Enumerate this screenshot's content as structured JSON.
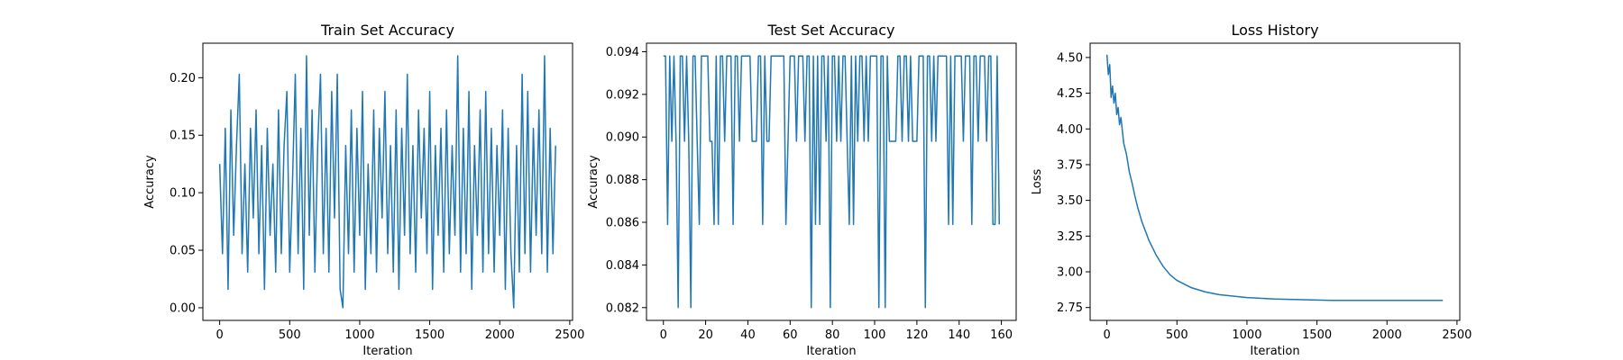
{
  "chart_data": [
    {
      "type": "line",
      "title": "Train Set Accuracy",
      "x_label": "Iteration",
      "y_label": "Accuracy",
      "color": "#1f77b4",
      "x": [
        0,
        20,
        40,
        60,
        80,
        100,
        120,
        140,
        160,
        180,
        200,
        220,
        240,
        260,
        280,
        300,
        320,
        340,
        360,
        380,
        400,
        420,
        440,
        460,
        480,
        500,
        520,
        540,
        560,
        580,
        600,
        620,
        640,
        660,
        680,
        700,
        720,
        740,
        760,
        780,
        800,
        820,
        840,
        860,
        880,
        900,
        920,
        940,
        960,
        980,
        1000,
        1020,
        1040,
        1060,
        1080,
        1100,
        1120,
        1140,
        1160,
        1180,
        1200,
        1220,
        1240,
        1260,
        1280,
        1300,
        1320,
        1340,
        1360,
        1380,
        1400,
        1420,
        1440,
        1460,
        1480,
        1500,
        1520,
        1540,
        1560,
        1580,
        1600,
        1620,
        1640,
        1660,
        1680,
        1700,
        1720,
        1740,
        1760,
        1780,
        1800,
        1820,
        1840,
        1860,
        1880,
        1900,
        1920,
        1940,
        1960,
        1980,
        2000,
        2020,
        2040,
        2060,
        2080,
        2100,
        2120,
        2140,
        2160,
        2180,
        2200,
        2220,
        2240,
        2260,
        2280,
        2300,
        2320,
        2340,
        2360,
        2380,
        2399
      ],
      "values": [
        0.125,
        0.047,
        0.156,
        0.016,
        0.172,
        0.063,
        0.141,
        0.203,
        0.047,
        0.125,
        0.031,
        0.156,
        0.078,
        0.172,
        0.047,
        0.141,
        0.016,
        0.156,
        0.063,
        0.125,
        0.031,
        0.172,
        0.047,
        0.141,
        0.188,
        0.031,
        0.109,
        0.203,
        0.047,
        0.156,
        0.016,
        0.219,
        0.063,
        0.172,
        0.031,
        0.141,
        0.203,
        0.047,
        0.156,
        0.031,
        0.188,
        0.078,
        0.203,
        0.016,
        0.0,
        0.141,
        0.047,
        0.172,
        0.031,
        0.156,
        0.063,
        0.188,
        0.016,
        0.125,
        0.047,
        0.172,
        0.031,
        0.156,
        0.078,
        0.188,
        0.047,
        0.141,
        0.031,
        0.172,
        0.016,
        0.156,
        0.063,
        0.203,
        0.047,
        0.141,
        0.031,
        0.172,
        0.078,
        0.156,
        0.047,
        0.188,
        0.016,
        0.141,
        0.063,
        0.156,
        0.031,
        0.172,
        0.047,
        0.141,
        0.063,
        0.219,
        0.031,
        0.156,
        0.047,
        0.188,
        0.016,
        0.141,
        0.063,
        0.172,
        0.031,
        0.188,
        0.047,
        0.156,
        0.031,
        0.141,
        0.063,
        0.172,
        0.016,
        0.156,
        0.047,
        0.0,
        0.141,
        0.031,
        0.203,
        0.047,
        0.188,
        0.031,
        0.156,
        0.063,
        0.172,
        0.047,
        0.219,
        0.031,
        0.156,
        0.047,
        0.141
      ],
      "xlim": [
        -120,
        2520
      ],
      "ylim": [
        -0.011,
        0.23
      ],
      "xticks": [
        0,
        500,
        1000,
        1500,
        2000,
        2500
      ],
      "yticks": [
        {
          "value": 0,
          "label": "0.00"
        },
        0.05,
        {
          "value": 0.1,
          "label": "0.10"
        },
        0.15,
        {
          "value": 0.2,
          "label": "0.20"
        }
      ]
    },
    {
      "type": "line",
      "title": "Test Set Accuracy",
      "x_label": "Iteration",
      "y_label": "Accuracy",
      "color": "#1f77b4",
      "x": [
        0,
        1,
        2,
        3,
        4,
        5,
        6,
        7,
        8,
        9,
        10,
        11,
        12,
        13,
        14,
        15,
        16,
        17,
        18,
        19,
        20,
        21,
        22,
        23,
        24,
        25,
        26,
        27,
        28,
        29,
        30,
        31,
        32,
        33,
        34,
        35,
        36,
        37,
        38,
        39,
        40,
        41,
        42,
        43,
        44,
        45,
        46,
        47,
        48,
        49,
        50,
        51,
        52,
        53,
        54,
        55,
        56,
        57,
        58,
        59,
        60,
        61,
        62,
        63,
        64,
        65,
        66,
        67,
        68,
        69,
        70,
        71,
        72,
        73,
        74,
        75,
        76,
        77,
        78,
        79,
        80,
        81,
        82,
        83,
        84,
        85,
        86,
        87,
        88,
        89,
        90,
        91,
        92,
        93,
        94,
        95,
        96,
        97,
        98,
        99,
        100,
        101,
        102,
        103,
        104,
        105,
        106,
        107,
        108,
        109,
        110,
        111,
        112,
        113,
        114,
        115,
        116,
        117,
        118,
        119,
        120,
        121,
        122,
        123,
        124,
        125,
        126,
        127,
        128,
        129,
        130,
        131,
        132,
        133,
        134,
        135,
        136,
        137,
        138,
        139,
        140,
        141,
        142,
        143,
        144,
        145,
        146,
        147,
        148,
        149,
        150,
        151,
        152,
        153,
        154,
        155,
        156,
        157,
        158,
        159
      ],
      "values": [
        0.0938,
        0.0938,
        0.0859,
        0.0938,
        0.0898,
        0.0938,
        0.0898,
        0.082,
        0.0938,
        0.0938,
        0.0898,
        0.0938,
        0.0898,
        0.082,
        0.0938,
        0.0938,
        0.0898,
        0.0859,
        0.0938,
        0.0938,
        0.0938,
        0.0938,
        0.0898,
        0.0898,
        0.0859,
        0.0938,
        0.0859,
        0.0938,
        0.0938,
        0.0898,
        0.0938,
        0.0938,
        0.0938,
        0.0859,
        0.0938,
        0.0938,
        0.0898,
        0.0938,
        0.0938,
        0.0938,
        0.0938,
        0.0938,
        0.0898,
        0.0898,
        0.0898,
        0.0938,
        0.0938,
        0.0859,
        0.0938,
        0.0898,
        0.0898,
        0.0938,
        0.0938,
        0.0938,
        0.0938,
        0.0938,
        0.0938,
        0.0938,
        0.0859,
        0.0898,
        0.0938,
        0.0938,
        0.0938,
        0.0898,
        0.0938,
        0.0938,
        0.0938,
        0.0898,
        0.0938,
        0.0938,
        0.082,
        0.0938,
        0.0859,
        0.0938,
        0.0859,
        0.0938,
        0.0938,
        0.0898,
        0.0938,
        0.082,
        0.0938,
        0.0938,
        0.0898,
        0.0938,
        0.0898,
        0.0938,
        0.0938,
        0.0898,
        0.0859,
        0.0938,
        0.0859,
        0.0938,
        0.0898,
        0.0938,
        0.0938,
        0.0898,
        0.0938,
        0.0898,
        0.0938,
        0.0938,
        0.0938,
        0.0938,
        0.082,
        0.0938,
        0.0938,
        0.082,
        0.0938,
        0.0898,
        0.0898,
        0.0898,
        0.0898,
        0.0938,
        0.0938,
        0.0898,
        0.0938,
        0.0938,
        0.0898,
        0.0938,
        0.0898,
        0.0898,
        0.0898,
        0.0938,
        0.0938,
        0.0938,
        0.082,
        0.0938,
        0.0938,
        0.0898,
        0.0938,
        0.0898,
        0.0938,
        0.0938,
        0.0938,
        0.0938,
        0.0938,
        0.0859,
        0.0938,
        0.0859,
        0.0938,
        0.0938,
        0.0938,
        0.0938,
        0.0898,
        0.0938,
        0.0938,
        0.0938,
        0.0859,
        0.0938,
        0.0938,
        0.0898,
        0.0938,
        0.0938,
        0.0938,
        0.0898,
        0.0938,
        0.0938,
        0.0859,
        0.0859,
        0.0938,
        0.0859
      ],
      "xlim": [
        -8,
        167
      ],
      "ylim": [
        0.0814,
        0.0944
      ],
      "xticks": [
        0,
        20,
        40,
        60,
        80,
        100,
        120,
        140,
        160
      ],
      "yticks": [
        0.082,
        0.084,
        0.086,
        0.088,
        {
          "value": 0.09,
          "label": "0.090"
        },
        0.092,
        0.094
      ]
    },
    {
      "type": "line",
      "title": "Loss History",
      "x_label": "Iteration",
      "y_label": "Loss",
      "color": "#1f77b4",
      "x": [
        0,
        10,
        20,
        30,
        40,
        50,
        60,
        70,
        80,
        90,
        100,
        120,
        140,
        160,
        180,
        200,
        220,
        250,
        300,
        350,
        400,
        450,
        500,
        600,
        700,
        800,
        900,
        1000,
        1200,
        1400,
        1600,
        1800,
        2000,
        2200,
        2399
      ],
      "values": [
        4.52,
        4.38,
        4.45,
        4.22,
        4.3,
        4.18,
        4.25,
        4.1,
        4.15,
        4.03,
        4.08,
        3.9,
        3.82,
        3.7,
        3.62,
        3.53,
        3.45,
        3.35,
        3.22,
        3.12,
        3.04,
        2.98,
        2.94,
        2.89,
        2.86,
        2.84,
        2.83,
        2.82,
        2.81,
        2.805,
        2.8,
        2.8,
        2.8,
        2.8,
        2.8
      ],
      "xlim": [
        -120,
        2520
      ],
      "ylim": [
        2.66,
        4.6
      ],
      "xticks": [
        0,
        500,
        1000,
        1500,
        2000,
        2500
      ],
      "yticks": [
        2.75,
        {
          "value": 3,
          "label": "3.00"
        },
        3.25,
        {
          "value": 3.5,
          "label": "3.50"
        },
        3.75,
        {
          "value": 4,
          "label": "4.00"
        },
        4.25,
        {
          "value": 4.5,
          "label": "4.50"
        }
      ]
    }
  ]
}
